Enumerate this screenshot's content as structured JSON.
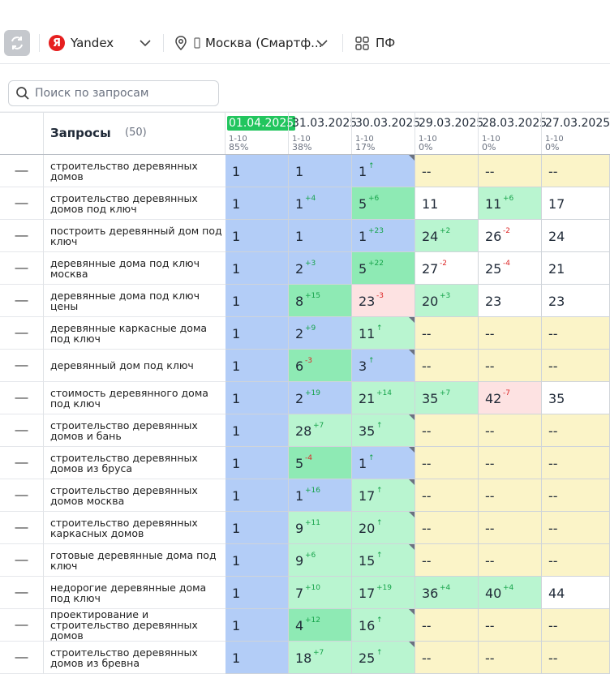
{
  "toolbar": {
    "engine_label": "Yandex",
    "engine_logo_letter": "Я",
    "region_label": "Москва (Смартф...",
    "pf_label": "ПФ"
  },
  "search": {
    "placeholder": "Поиск по запросам",
    "value": ""
  },
  "table": {
    "title": "Запросы",
    "count": "(50)",
    "dates": [
      {
        "date": "01.04.2025",
        "range": "1-10",
        "pct": "85%",
        "active": true
      },
      {
        "date": "31.03.2025",
        "range": "1-10",
        "pct": "38%",
        "active": false
      },
      {
        "date": "30.03.2025",
        "range": "1-10",
        "pct": "17%",
        "active": false
      },
      {
        "date": "29.03.2025",
        "range": "1-10",
        "pct": "0%",
        "active": false
      },
      {
        "date": "28.03.2025",
        "range": "1-10",
        "pct": "0%",
        "active": false
      },
      {
        "date": "27.03.2025",
        "range": "1-10",
        "pct": "0%",
        "active": false
      }
    ],
    "rows": [
      {
        "query": "строительство деревянных домов",
        "cells": [
          {
            "v": "1",
            "c": "blue"
          },
          {
            "v": "1",
            "c": "blue"
          },
          {
            "v": "1",
            "ch": "↑",
            "t": "arrow",
            "c": "blue",
            "corner": true
          },
          {
            "v": "--",
            "c": "yellow"
          },
          {
            "v": "--",
            "c": "yellow"
          },
          {
            "v": "--",
            "c": "yellow"
          }
        ]
      },
      {
        "query": "строительство деревянных домов под ключ",
        "cells": [
          {
            "v": "1",
            "c": "blue"
          },
          {
            "v": "1",
            "ch": "+4",
            "t": "up",
            "c": "blue"
          },
          {
            "v": "5",
            "ch": "+6",
            "t": "up",
            "c": "dgreen"
          },
          {
            "v": "11",
            "c": "white"
          },
          {
            "v": "11",
            "ch": "+6",
            "t": "up",
            "c": "green"
          },
          {
            "v": "17",
            "c": "white"
          }
        ]
      },
      {
        "query": "построить деревянный дом под ключ",
        "cells": [
          {
            "v": "1",
            "c": "blue"
          },
          {
            "v": "1",
            "c": "blue"
          },
          {
            "v": "1",
            "ch": "+23",
            "t": "up",
            "c": "blue"
          },
          {
            "v": "24",
            "ch": "+2",
            "t": "up",
            "c": "green"
          },
          {
            "v": "26",
            "ch": "-2",
            "t": "down",
            "c": "white"
          },
          {
            "v": "24",
            "c": "white"
          }
        ]
      },
      {
        "query": "деревянные дома под ключ москва",
        "cells": [
          {
            "v": "1",
            "c": "blue"
          },
          {
            "v": "2",
            "ch": "+3",
            "t": "up",
            "c": "blue"
          },
          {
            "v": "5",
            "ch": "+22",
            "t": "up",
            "c": "dgreen"
          },
          {
            "v": "27",
            "ch": "-2",
            "t": "down",
            "c": "white"
          },
          {
            "v": "25",
            "ch": "-4",
            "t": "down",
            "c": "white"
          },
          {
            "v": "21",
            "c": "white"
          }
        ]
      },
      {
        "query": "деревянные дома под ключ цены",
        "cells": [
          {
            "v": "1",
            "c": "blue"
          },
          {
            "v": "8",
            "ch": "+15",
            "t": "up",
            "c": "dgreen"
          },
          {
            "v": "23",
            "ch": "-3",
            "t": "down",
            "c": "red"
          },
          {
            "v": "20",
            "ch": "+3",
            "t": "up",
            "c": "green"
          },
          {
            "v": "23",
            "c": "white"
          },
          {
            "v": "23",
            "c": "white"
          }
        ]
      },
      {
        "query": "деревянные каркасные дома под ключ",
        "cells": [
          {
            "v": "1",
            "c": "blue"
          },
          {
            "v": "2",
            "ch": "+9",
            "t": "up",
            "c": "blue"
          },
          {
            "v": "11",
            "ch": "↑",
            "t": "arrow",
            "c": "green",
            "corner": true
          },
          {
            "v": "--",
            "c": "yellow"
          },
          {
            "v": "--",
            "c": "yellow"
          },
          {
            "v": "--",
            "c": "yellow"
          }
        ]
      },
      {
        "query": "деревянный дом под ключ",
        "cells": [
          {
            "v": "1",
            "c": "blue"
          },
          {
            "v": "6",
            "ch": "-3",
            "t": "down",
            "c": "dgreen"
          },
          {
            "v": "3",
            "ch": "↑",
            "t": "arrow",
            "c": "blue",
            "corner": true
          },
          {
            "v": "--",
            "c": "yellow"
          },
          {
            "v": "--",
            "c": "yellow"
          },
          {
            "v": "--",
            "c": "yellow"
          }
        ]
      },
      {
        "query": "стоимость деревянного дома под ключ",
        "cells": [
          {
            "v": "1",
            "c": "blue"
          },
          {
            "v": "2",
            "ch": "+19",
            "t": "up",
            "c": "blue"
          },
          {
            "v": "21",
            "ch": "+14",
            "t": "up",
            "c": "green"
          },
          {
            "v": "35",
            "ch": "+7",
            "t": "up",
            "c": "green"
          },
          {
            "v": "42",
            "ch": "-7",
            "t": "down",
            "c": "red"
          },
          {
            "v": "35",
            "c": "white"
          }
        ]
      },
      {
        "query": "строительство деревянных домов и бань",
        "cells": [
          {
            "v": "1",
            "c": "blue"
          },
          {
            "v": "28",
            "ch": "+7",
            "t": "up",
            "c": "green"
          },
          {
            "v": "35",
            "ch": "↑",
            "t": "arrow",
            "c": "green",
            "corner": true
          },
          {
            "v": "--",
            "c": "yellow"
          },
          {
            "v": "--",
            "c": "yellow"
          },
          {
            "v": "--",
            "c": "yellow"
          }
        ]
      },
      {
        "query": "строительство деревянных домов из бруса",
        "cells": [
          {
            "v": "1",
            "c": "blue"
          },
          {
            "v": "5",
            "ch": "-4",
            "t": "down",
            "c": "dgreen"
          },
          {
            "v": "1",
            "ch": "↑",
            "t": "arrow",
            "c": "blue",
            "corner": true
          },
          {
            "v": "--",
            "c": "yellow"
          },
          {
            "v": "--",
            "c": "yellow"
          },
          {
            "v": "--",
            "c": "yellow"
          }
        ]
      },
      {
        "query": "строительство деревянных домов москва",
        "cells": [
          {
            "v": "1",
            "c": "blue"
          },
          {
            "v": "1",
            "ch": "+16",
            "t": "up",
            "c": "blue"
          },
          {
            "v": "17",
            "ch": "↑",
            "t": "arrow",
            "c": "green",
            "corner": true
          },
          {
            "v": "--",
            "c": "yellow"
          },
          {
            "v": "--",
            "c": "yellow"
          },
          {
            "v": "--",
            "c": "yellow"
          }
        ]
      },
      {
        "query": "строительство деревянных каркасных домов",
        "cells": [
          {
            "v": "1",
            "c": "blue"
          },
          {
            "v": "9",
            "ch": "+11",
            "t": "up",
            "c": "green"
          },
          {
            "v": "20",
            "ch": "↑",
            "t": "arrow",
            "c": "green",
            "corner": true
          },
          {
            "v": "--",
            "c": "yellow"
          },
          {
            "v": "--",
            "c": "yellow"
          },
          {
            "v": "--",
            "c": "yellow"
          }
        ]
      },
      {
        "query": "готовые деревянные дома под ключ",
        "cells": [
          {
            "v": "1",
            "c": "blue"
          },
          {
            "v": "9",
            "ch": "+6",
            "t": "up",
            "c": "green"
          },
          {
            "v": "15",
            "ch": "↑",
            "t": "arrow",
            "c": "green",
            "corner": true
          },
          {
            "v": "--",
            "c": "yellow"
          },
          {
            "v": "--",
            "c": "yellow"
          },
          {
            "v": "--",
            "c": "yellow"
          }
        ]
      },
      {
        "query": "недорогие деревянные дома под ключ",
        "cells": [
          {
            "v": "1",
            "c": "blue"
          },
          {
            "v": "7",
            "ch": "+10",
            "t": "up",
            "c": "green"
          },
          {
            "v": "17",
            "ch": "+19",
            "t": "up",
            "c": "green"
          },
          {
            "v": "36",
            "ch": "+4",
            "t": "up",
            "c": "green"
          },
          {
            "v": "40",
            "ch": "+4",
            "t": "up",
            "c": "green"
          },
          {
            "v": "44",
            "c": "white"
          }
        ]
      },
      {
        "query": "проектирование и строительство деревянных домов",
        "cells": [
          {
            "v": "1",
            "c": "blue"
          },
          {
            "v": "4",
            "ch": "+12",
            "t": "up",
            "c": "dgreen"
          },
          {
            "v": "16",
            "ch": "↑",
            "t": "arrow",
            "c": "green",
            "corner": true
          },
          {
            "v": "--",
            "c": "yellow"
          },
          {
            "v": "--",
            "c": "yellow"
          },
          {
            "v": "--",
            "c": "yellow"
          }
        ]
      },
      {
        "query": "строительство деревянных домов из бревна",
        "cells": [
          {
            "v": "1",
            "c": "blue"
          },
          {
            "v": "18",
            "ch": "+7",
            "t": "up",
            "c": "green"
          },
          {
            "v": "25",
            "ch": "↑",
            "t": "arrow",
            "c": "green",
            "corner": true
          },
          {
            "v": "--",
            "c": "yellow"
          },
          {
            "v": "--",
            "c": "yellow"
          },
          {
            "v": "--",
            "c": "yellow"
          }
        ]
      }
    ]
  },
  "icons": [
    "refresh-icon",
    "yandex-logo-icon",
    "chevron-down-icon",
    "location-pin-icon",
    "phone-icon",
    "grid-icon",
    "search-icon",
    "collapse-dash-icon"
  ]
}
